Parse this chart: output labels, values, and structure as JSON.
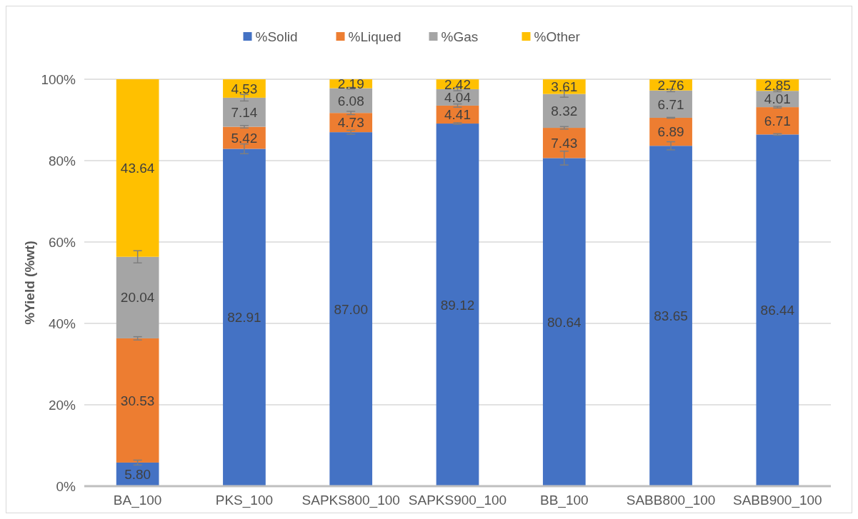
{
  "chart_data": {
    "type": "bar",
    "stacked": true,
    "ylabel": "%Yield (%wt)",
    "categories": [
      "BA_100",
      "PKS_100",
      "SAPKS800_100",
      "SAPKS900_100",
      "BB_100",
      "SABB800_100",
      "SABB900_100"
    ],
    "series": [
      {
        "name": "%Solid",
        "color": "#4472c4",
        "values": [
          5.8,
          82.91,
          87.0,
          89.12,
          80.64,
          83.65,
          86.44
        ],
        "errors": [
          0.6,
          1.2,
          0.5,
          0.2,
          1.7,
          1.0,
          0.2
        ],
        "value_labels": [
          "5.80",
          "82.91",
          "87.00",
          "89.12",
          "80.64",
          "83.65",
          "86.44"
        ]
      },
      {
        "name": "%Liqued",
        "color": "#ed7d31",
        "values": [
          30.53,
          5.42,
          4.73,
          4.41,
          7.43,
          6.89,
          6.71
        ],
        "errors": [
          0.4,
          0.3,
          0.4,
          0.4,
          0.3,
          0.1,
          0.2
        ],
        "value_labels": [
          "30.53",
          "5.42",
          "4.73",
          "4.41",
          "7.43",
          "6.89",
          "6.71"
        ]
      },
      {
        "name": "%Gas",
        "color": "#a5a5a5",
        "values": [
          20.04,
          7.14,
          6.08,
          4.04,
          8.32,
          6.71,
          4.01
        ],
        "errors": [
          1.5,
          0.8,
          0.2,
          0.4,
          0.8,
          0.3,
          0.2
        ],
        "value_labels": [
          "20.04",
          "7.14",
          "6.08",
          "4.04",
          "8.32",
          "6.71",
          "4.01"
        ]
      },
      {
        "name": "%Other",
        "color": "#ffc000",
        "values": [
          43.64,
          4.53,
          2.19,
          2.42,
          3.61,
          2.76,
          2.85
        ],
        "value_labels": [
          "43.64",
          "4.53",
          "2.19",
          "2.42",
          "3.61",
          "2.76",
          "2.85"
        ]
      }
    ],
    "ylim": [
      0,
      100.01
    ],
    "yticks": [
      {
        "value": 0,
        "label": "0%"
      },
      {
        "value": 20,
        "label": "20%"
      },
      {
        "value": 40,
        "label": "40%"
      },
      {
        "value": 60,
        "label": "60%"
      },
      {
        "value": 80,
        "label": "80%"
      },
      {
        "value": 100,
        "label": "100%"
      }
    ],
    "grid": "y",
    "legend": "top"
  }
}
